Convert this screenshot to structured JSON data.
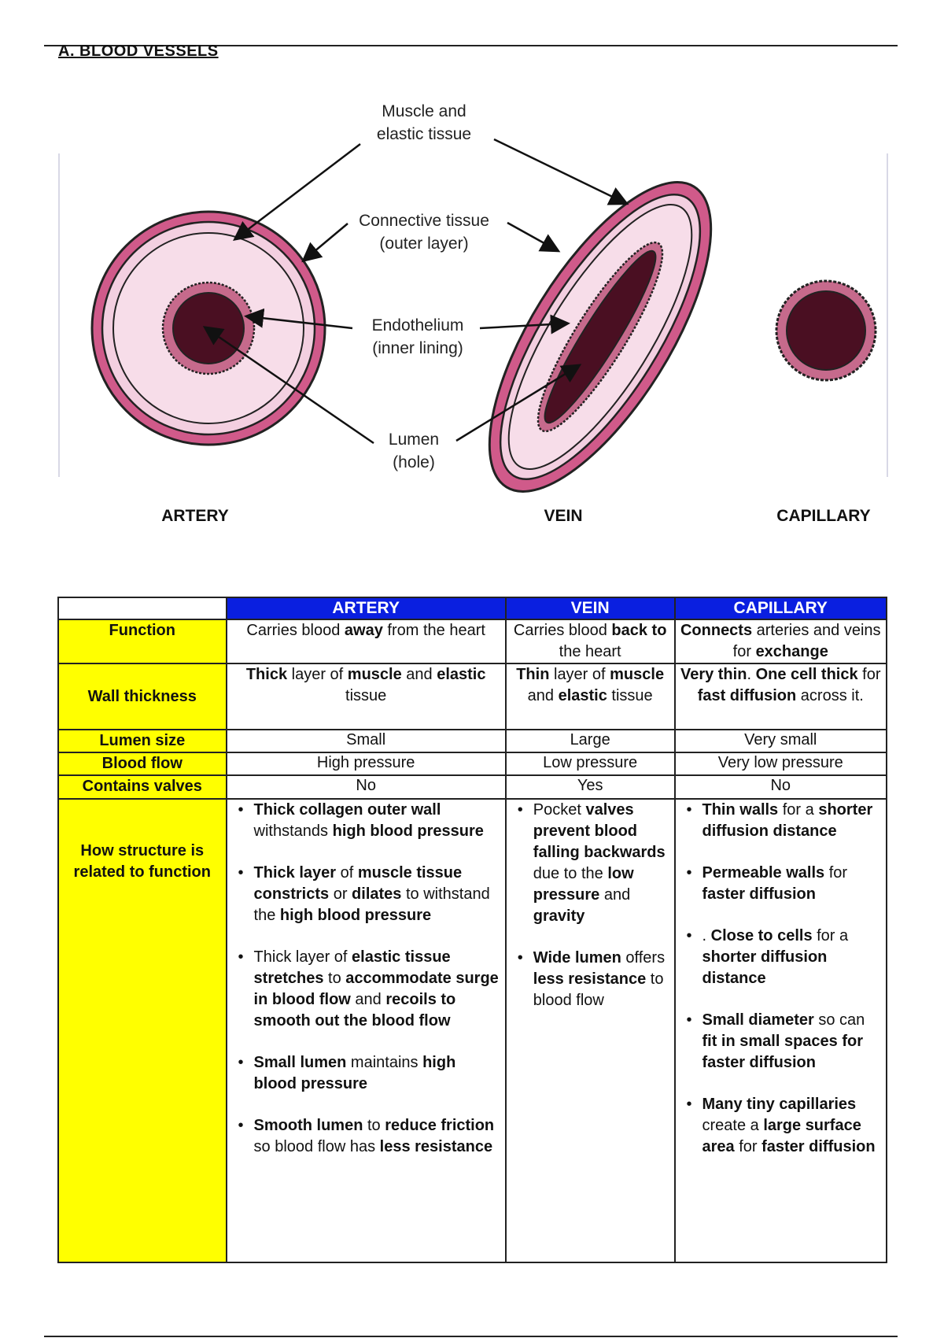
{
  "title": "A. BLOOD VESSELS",
  "diagram": {
    "labels": {
      "muscle": [
        "Muscle and",
        "elastic tissue"
      ],
      "connective": [
        "Connective tissue",
        "(outer layer)"
      ],
      "endothelium": [
        "Endothelium",
        "(inner lining)"
      ],
      "lumen": [
        "Lumen",
        "(hole)"
      ]
    },
    "vessel_names": {
      "artery": "ARTERY",
      "vein": "VEIN",
      "capillary": "CAPILLARY"
    },
    "colors": {
      "outer": "#d05a8a",
      "wall": "#f3cfe0",
      "lumen": "#4a0f22",
      "endo": "#c66a8c"
    }
  },
  "table": {
    "headers": [
      "",
      "ARTERY",
      "VEIN",
      "CAPILLARY"
    ],
    "rows": [
      {
        "label": "Function",
        "cells": [
          [
            {
              "t": "Carries blood "
            },
            {
              "t": "away",
              "b": true
            },
            {
              "t": " from the heart"
            }
          ],
          [
            {
              "t": "Carries blood "
            },
            {
              "t": "back to",
              "b": true
            },
            {
              "t": " the heart"
            }
          ],
          [
            {
              "t": "Connects",
              "b": true
            },
            {
              "t": " arteries and veins for "
            },
            {
              "t": "exchange",
              "b": true
            }
          ]
        ]
      },
      {
        "label": "Wall thickness",
        "cells": [
          [
            {
              "t": "Thick",
              "b": true
            },
            {
              "t": " layer of "
            },
            {
              "t": "muscle",
              "b": true
            },
            {
              "t": " and "
            },
            {
              "t": "elastic",
              "b": true
            },
            {
              "t": " tissue"
            }
          ],
          [
            {
              "t": "Thin",
              "b": true
            },
            {
              "t": " layer of "
            },
            {
              "t": "muscle",
              "b": true
            },
            {
              "t": " and "
            },
            {
              "t": "elastic",
              "b": true
            },
            {
              "t": " tissue"
            }
          ],
          [
            {
              "t": "Very thin",
              "b": true
            },
            {
              "t": ". "
            },
            {
              "t": "One cell thick",
              "b": true
            },
            {
              "t": " for "
            },
            {
              "t": "fast diffusion",
              "b": true
            },
            {
              "t": " across it."
            }
          ]
        ]
      },
      {
        "label": "Lumen size",
        "cells": [
          [
            {
              "t": "Small"
            }
          ],
          [
            {
              "t": "Large"
            }
          ],
          [
            {
              "t": "Very small"
            }
          ]
        ]
      },
      {
        "label": "Blood flow",
        "cells": [
          [
            {
              "t": "High pressure"
            }
          ],
          [
            {
              "t": "Low pressure"
            }
          ],
          [
            {
              "t": "Very low pressure"
            }
          ]
        ]
      },
      {
        "label": "Contains valves",
        "cells": [
          [
            {
              "t": "No"
            }
          ],
          [
            {
              "t": "Yes"
            }
          ],
          [
            {
              "t": "No"
            }
          ]
        ]
      }
    ],
    "structure_row": {
      "label": "How structure is related to function",
      "artery": [
        [
          {
            "t": "Thick collagen outer wall",
            "b": true
          },
          {
            "t": " withstands "
          },
          {
            "t": "high blood pressure",
            "b": true
          }
        ],
        [
          {
            "t": "Thick layer",
            "b": true
          },
          {
            "t": " of "
          },
          {
            "t": "muscle tissue constricts",
            "b": true
          },
          {
            "t": " or "
          },
          {
            "t": "dilates",
            "b": true
          },
          {
            "t": " to withstand the "
          },
          {
            "t": "high blood pressure",
            "b": true
          }
        ],
        [
          {
            "t": "Thick layer of "
          },
          {
            "t": "elastic tissue stretches",
            "b": true
          },
          {
            "t": " to "
          },
          {
            "t": "accommodate surge in blood flow",
            "b": true
          },
          {
            "t": " and "
          },
          {
            "t": "recoils to smooth out the blood flow",
            "b": true
          }
        ],
        [
          {
            "t": "Small lumen",
            "b": true
          },
          {
            "t": " maintains "
          },
          {
            "t": "high blood pressure",
            "b": true
          }
        ],
        [
          {
            "t": "Smooth lumen",
            "b": true
          },
          {
            "t": " to "
          },
          {
            "t": "reduce friction",
            "b": true
          },
          {
            "t": " so blood flow has "
          },
          {
            "t": "less resistance",
            "b": true
          }
        ]
      ],
      "vein": [
        [
          {
            "t": "Pocket "
          },
          {
            "t": "valves prevent blood falling backwards",
            "b": true
          },
          {
            "t": " due to the "
          },
          {
            "t": "low",
            "b": true
          },
          {
            "t": " "
          },
          {
            "t": "pressure",
            "b": true
          },
          {
            "t": " and "
          },
          {
            "t": "gravity",
            "b": true
          }
        ],
        [
          {
            "t": "Wide lumen",
            "b": true
          },
          {
            "t": " offers "
          },
          {
            "t": "less resistance",
            "b": true
          },
          {
            "t": " to blood flow"
          }
        ]
      ],
      "capillary": [
        [
          {
            "t": "Thin walls",
            "b": true
          },
          {
            "t": " for a "
          },
          {
            "t": "shorter diffusion distance",
            "b": true
          }
        ],
        [
          {
            "t": "Permeable walls",
            "b": true
          },
          {
            "t": " for "
          },
          {
            "t": "faster diffusion",
            "b": true
          }
        ],
        [
          {
            "t": ". "
          },
          {
            "t": "Close to cells",
            "b": true
          },
          {
            "t": " for a "
          },
          {
            "t": "shorter diffusion distance",
            "b": true
          }
        ],
        [
          {
            "t": "Small diameter",
            "b": true
          },
          {
            "t": " so can "
          },
          {
            "t": "fit in small",
            "b": true
          },
          {
            "t": " "
          },
          {
            "t": "spaces for faster diffusion",
            "b": true
          }
        ],
        [
          {
            "t": "Many tiny",
            "b": true
          },
          {
            "t": " "
          },
          {
            "t": "capillaries",
            "b": true
          },
          {
            "t": " create a "
          },
          {
            "t": "large surface area",
            "b": true
          },
          {
            "t": " for "
          },
          {
            "t": "faster diffusion",
            "b": true
          }
        ]
      ]
    }
  }
}
